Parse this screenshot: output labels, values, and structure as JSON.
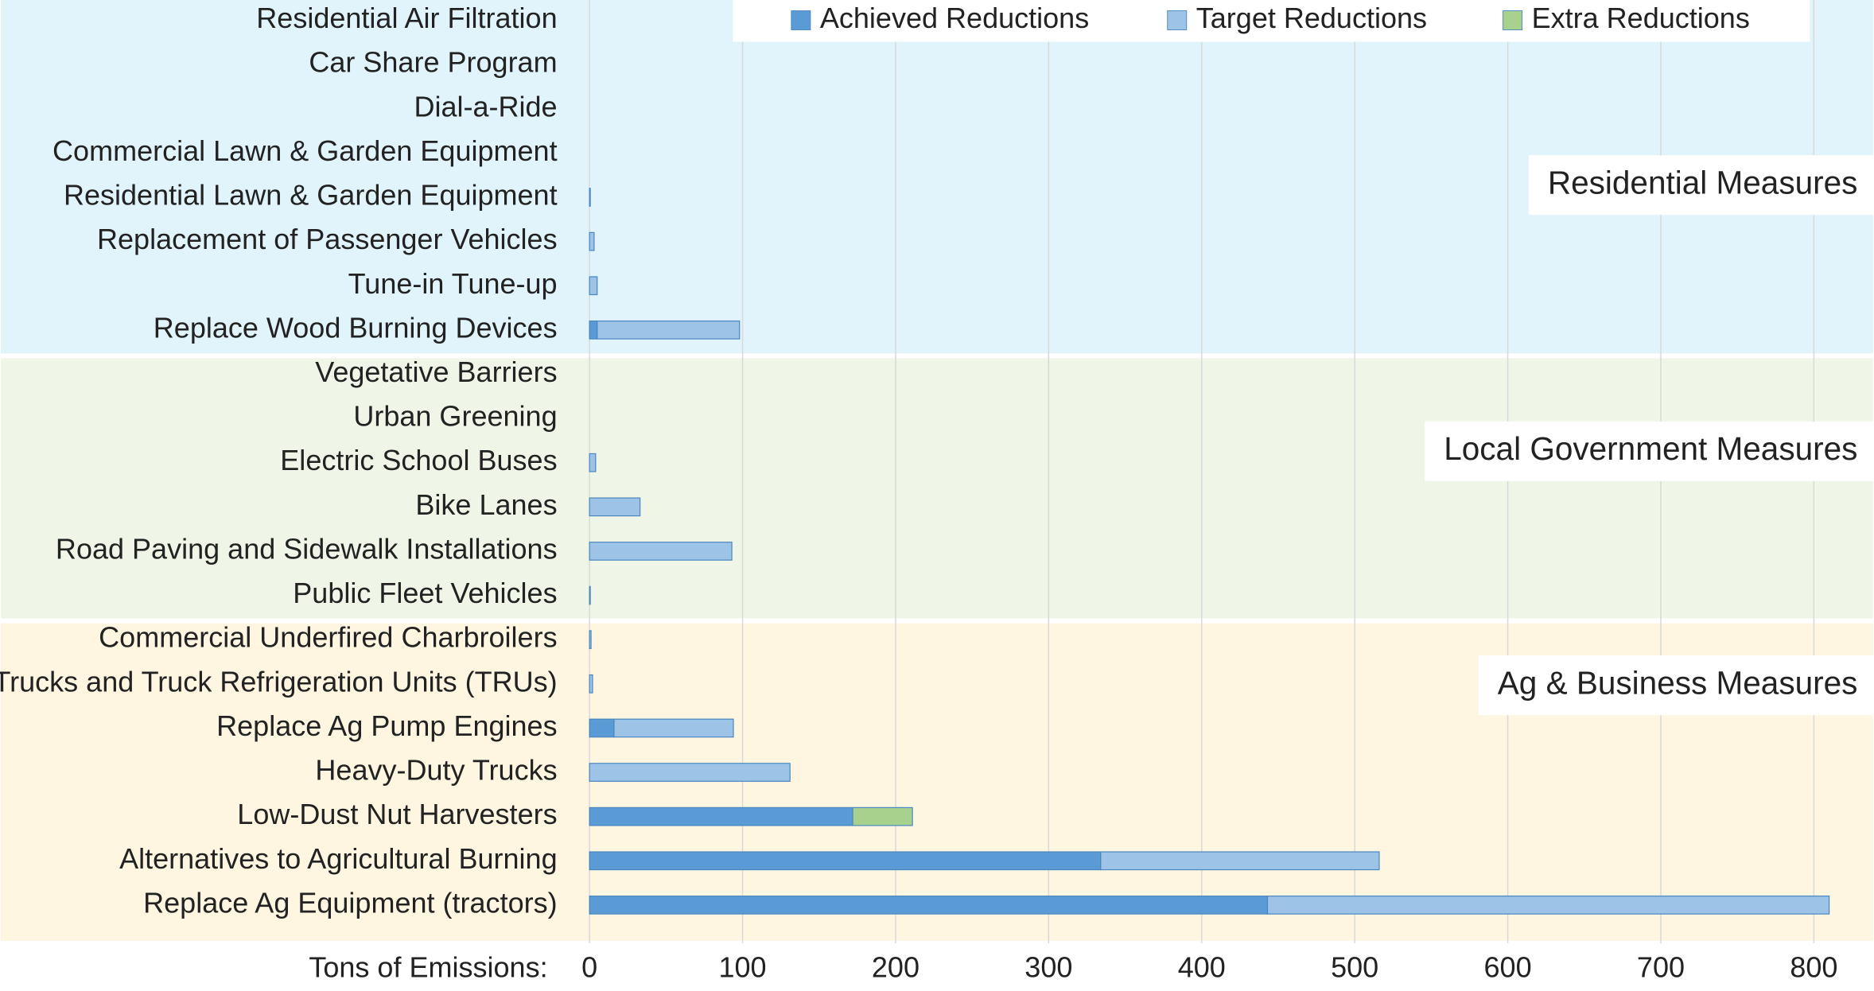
{
  "chart_data": {
    "type": "bar",
    "orientation": "horizontal",
    "stacked": true,
    "x_label": "Tons of Emissions:",
    "categories": [
      "Residential Air Filtration",
      "Car Share Program",
      "Dial-a-Ride",
      "Commercial Lawn & Garden Equipment",
      "Residential Lawn & Garden Equipment",
      "Replacement of Passenger Vehicles",
      "Tune-in Tune-up",
      "Replace Wood Burning Devices",
      "Vegetative Barriers",
      "Urban Greening",
      "Electric School Buses",
      "Bike Lanes",
      "Road Paving and Sidewalk Installations",
      "Public Fleet Vehicles",
      "Commercial Underfired Charbroilers",
      "Trucks and Truck Refrigeration Units (TRUs)",
      "Replace Ag Pump Engines",
      "Heavy-Duty Trucks",
      "Low-Dust Nut Harvesters",
      "Alternatives to Agricultural Burning",
      "Replace Ag Equipment (tractors)"
    ],
    "series": [
      {
        "name": "Achieved Reductions",
        "color": "#5b9bd5",
        "values": [
          0,
          0,
          0,
          0,
          0,
          0,
          0,
          5,
          0,
          0,
          0,
          0,
          0,
          0,
          0,
          0,
          16,
          0,
          172,
          334,
          443
        ]
      },
      {
        "name": "Target Reductions",
        "color": "#9dc3e6",
        "values": [
          0,
          0,
          0,
          0,
          0.5,
          3,
          5,
          93,
          0,
          0,
          4,
          33,
          93,
          0.5,
          1,
          2,
          78,
          131,
          0,
          182,
          367
        ]
      },
      {
        "name": "Extra Reductions",
        "color": "#a9d18e",
        "values": [
          0,
          0,
          0,
          0,
          0,
          0,
          0,
          0,
          0,
          0,
          0,
          0,
          0,
          0,
          0,
          0,
          0,
          0,
          39,
          0,
          0
        ]
      }
    ],
    "groups": [
      {
        "label": "Residential Measures",
        "color": "#e1f4fb"
      },
      {
        "label": "Local Government Measures",
        "color": "#eff6e8"
      },
      {
        "label": "Ag & Business Measures",
        "color": "#fef6e1"
      }
    ],
    "xlim": [
      0,
      840
    ],
    "xticks": [
      0,
      100,
      200,
      300,
      400,
      500,
      600,
      700,
      800
    ],
    "grid": true,
    "legend": "top"
  }
}
